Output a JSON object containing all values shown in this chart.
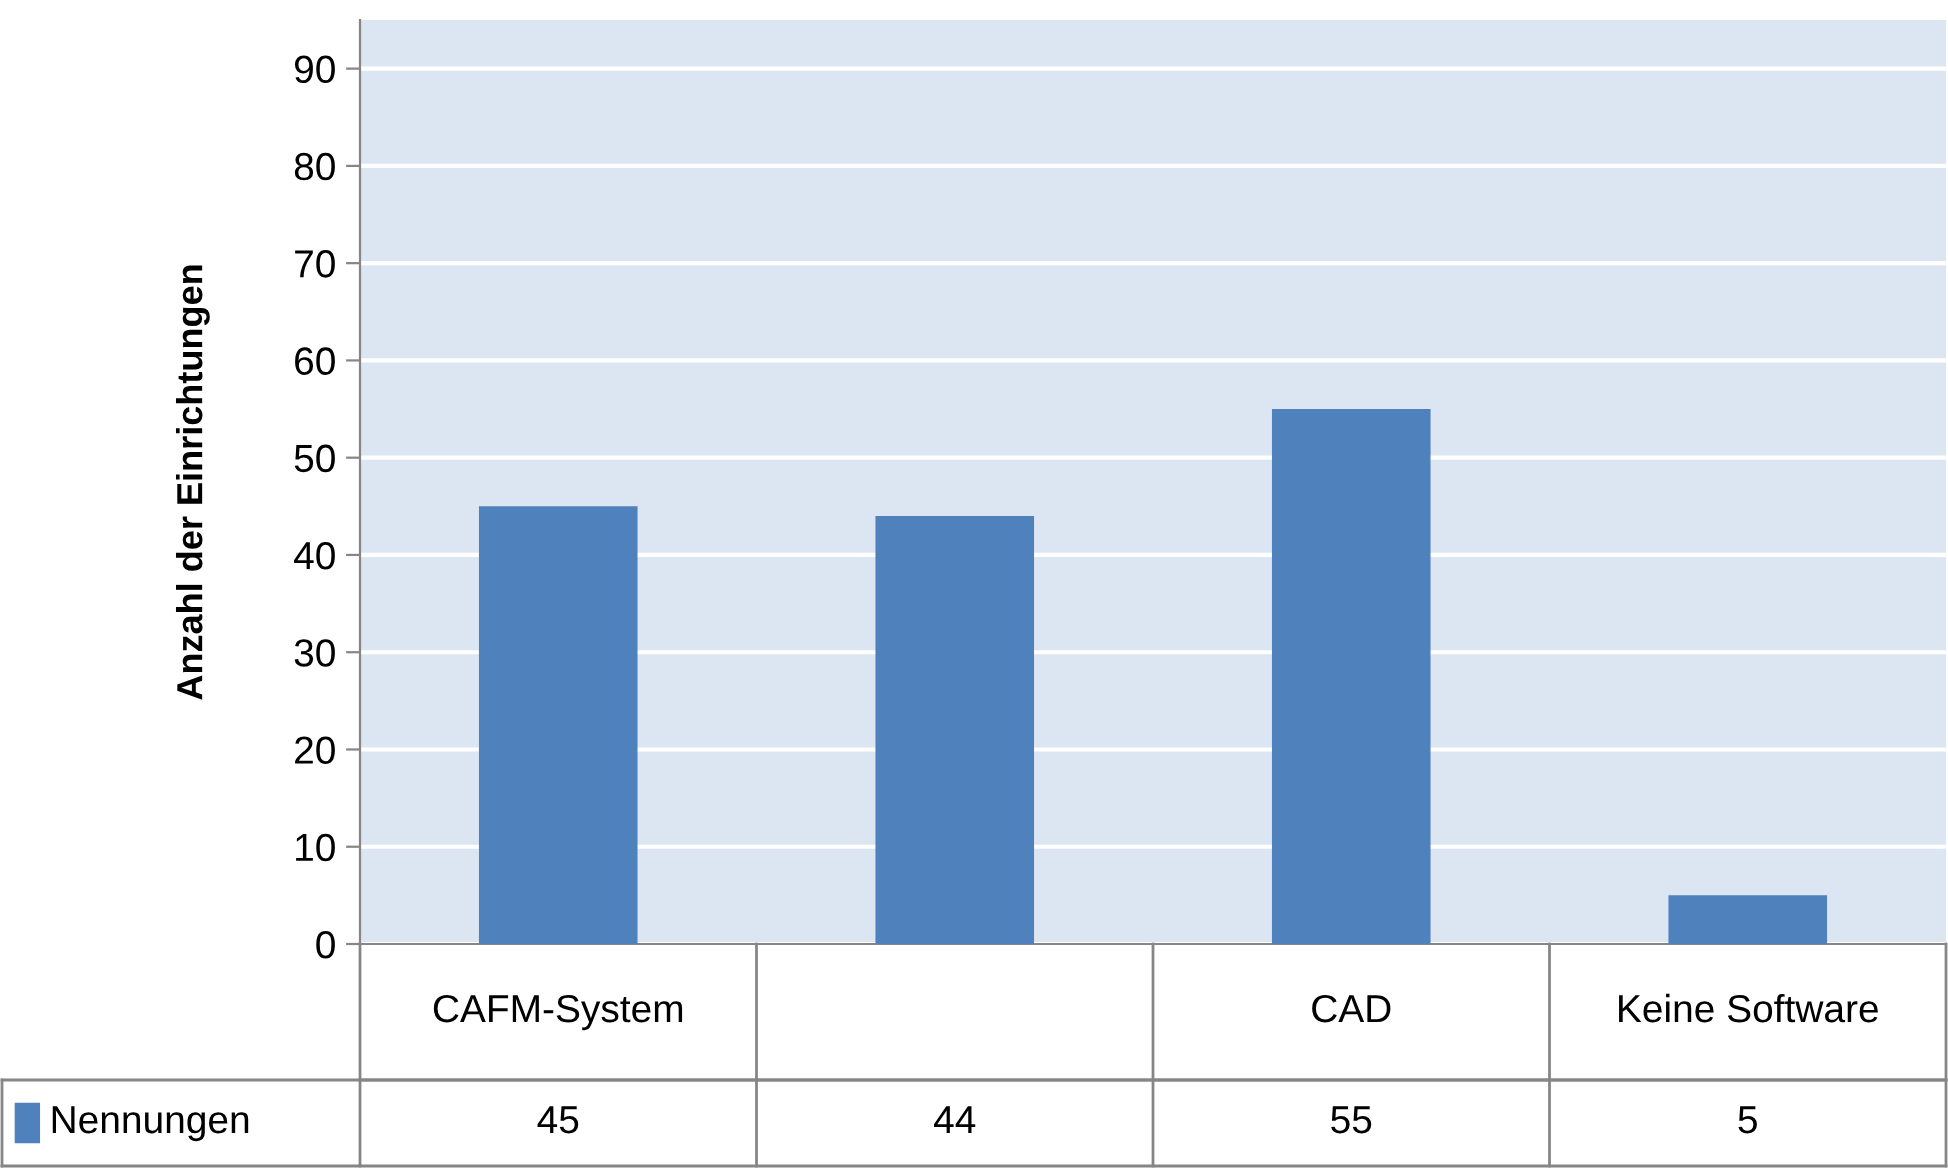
{
  "chart_data": {
    "type": "bar",
    "ylabel": "Anzahl der Einrichtungen",
    "categories": [
      "CAFM-System",
      null,
      "CAD",
      "Keine Software"
    ],
    "series": [
      {
        "name": "Nennungen",
        "color": "#4f81bd",
        "values": [
          45,
          44,
          55,
          5
        ]
      }
    ],
    "ylim": [
      0,
      95
    ],
    "yticks": [
      0,
      10,
      20,
      30,
      40,
      50,
      60,
      70,
      80,
      90
    ],
    "grid": "y",
    "data_labels": true,
    "legend": "bottom"
  }
}
